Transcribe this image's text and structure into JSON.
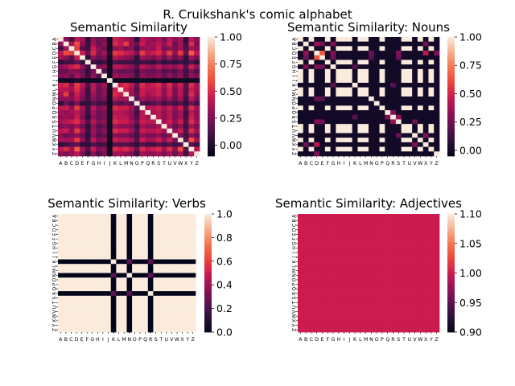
{
  "figure": {
    "suptitle": "R. Cruikshank's comic alphabet"
  },
  "chart_data": [
    {
      "type": "heatmap",
      "title": "Semantic Similarity",
      "x_labels": [
        "A",
        "B",
        "C",
        "D",
        "E",
        "F",
        "G",
        "H",
        "I",
        "J",
        "K",
        "L",
        "M",
        "N",
        "O",
        "P",
        "Q",
        "R",
        "S",
        "T",
        "U",
        "V",
        "W",
        "X",
        "Y",
        "Z"
      ],
      "y_labels": [
        "A",
        "B",
        "C",
        "D",
        "E",
        "F",
        "G",
        "H",
        "I",
        "J",
        "K",
        "L",
        "M",
        "N",
        "O",
        "P",
        "Q",
        "R",
        "S",
        "T",
        "U",
        "V",
        "W",
        "X",
        "Y",
        "Z"
      ],
      "vmin": -0.1,
      "vmax": 1.0,
      "colorbar_ticks": [
        "0.00",
        "0.25",
        "0.50",
        "0.75",
        "1.00"
      ],
      "colorbar_tick_values": [
        0.0,
        0.25,
        0.5,
        0.75,
        1.0
      ],
      "matrix": [
        [
          1.0,
          0.3,
          0.1,
          0.4,
          0.35,
          0.05,
          0.3,
          0.2,
          0.25,
          -0.05,
          0.45,
          0.4,
          0.35,
          0.3,
          0.05,
          0.4,
          0.35,
          0.3,
          0.35,
          0.25,
          0.4,
          0.3,
          0.35,
          0.05,
          0.4,
          0.3
        ],
        [
          0.3,
          1.0,
          0.35,
          0.6,
          0.3,
          0.1,
          0.35,
          0.2,
          0.3,
          -0.05,
          0.5,
          0.4,
          0.55,
          0.3,
          0.2,
          0.45,
          0.3,
          0.35,
          0.4,
          0.3,
          0.45,
          0.2,
          0.35,
          0.1,
          0.5,
          0.25
        ],
        [
          0.1,
          0.35,
          1.0,
          0.55,
          0.15,
          0.1,
          0.45,
          0.3,
          0.2,
          -0.05,
          0.3,
          0.35,
          0.25,
          0.3,
          0.1,
          0.3,
          0.35,
          0.3,
          0.45,
          0.25,
          0.3,
          0.25,
          0.35,
          0.15,
          0.35,
          0.3
        ],
        [
          0.4,
          0.6,
          0.55,
          1.0,
          0.45,
          0.2,
          0.5,
          0.25,
          0.35,
          0.0,
          0.55,
          0.5,
          0.45,
          0.4,
          0.25,
          0.55,
          0.4,
          0.45,
          0.5,
          0.35,
          0.55,
          0.3,
          0.55,
          0.2,
          0.65,
          0.4
        ],
        [
          0.35,
          0.3,
          0.15,
          0.45,
          1.0,
          0.05,
          0.3,
          0.2,
          0.25,
          -0.05,
          0.4,
          0.35,
          0.3,
          0.25,
          0.05,
          0.35,
          0.3,
          0.25,
          0.35,
          0.2,
          0.35,
          0.2,
          0.3,
          0.05,
          0.35,
          0.25
        ],
        [
          0.05,
          0.1,
          0.1,
          0.2,
          0.05,
          1.0,
          0.1,
          0.05,
          0.1,
          -0.05,
          0.15,
          0.1,
          0.1,
          0.1,
          0.05,
          0.1,
          0.1,
          0.05,
          0.15,
          0.05,
          0.1,
          0.05,
          0.1,
          0.05,
          0.15,
          0.05
        ],
        [
          0.3,
          0.35,
          0.45,
          0.5,
          0.3,
          0.1,
          1.0,
          0.25,
          0.3,
          -0.05,
          0.4,
          0.4,
          0.35,
          0.3,
          0.15,
          0.4,
          0.35,
          0.3,
          0.4,
          0.3,
          0.35,
          0.3,
          0.4,
          0.15,
          0.45,
          0.3
        ],
        [
          0.2,
          0.2,
          0.3,
          0.25,
          0.2,
          0.05,
          0.25,
          1.0,
          0.15,
          -0.05,
          0.25,
          0.2,
          0.2,
          0.2,
          0.1,
          0.25,
          0.2,
          0.2,
          0.25,
          0.15,
          0.2,
          0.15,
          0.25,
          0.1,
          0.25,
          0.15
        ],
        [
          0.25,
          0.3,
          0.2,
          0.35,
          0.25,
          0.1,
          0.3,
          0.15,
          1.0,
          -0.05,
          0.35,
          0.3,
          0.3,
          0.25,
          0.1,
          0.3,
          0.25,
          0.25,
          0.3,
          0.2,
          0.3,
          0.2,
          0.3,
          0.1,
          0.3,
          0.25
        ],
        [
          -0.05,
          -0.05,
          -0.05,
          0.0,
          -0.05,
          -0.05,
          -0.05,
          -0.05,
          -0.05,
          1.0,
          -0.05,
          -0.05,
          -0.05,
          -0.05,
          -0.05,
          -0.05,
          -0.05,
          -0.05,
          -0.05,
          -0.05,
          -0.05,
          -0.05,
          -0.05,
          -0.05,
          -0.05,
          -0.05
        ],
        [
          0.45,
          0.5,
          0.3,
          0.55,
          0.4,
          0.15,
          0.4,
          0.25,
          0.35,
          -0.05,
          1.0,
          0.45,
          0.5,
          0.4,
          0.2,
          0.5,
          0.4,
          0.45,
          0.5,
          0.35,
          0.5,
          0.3,
          0.45,
          0.15,
          0.5,
          0.35
        ],
        [
          0.4,
          0.4,
          0.35,
          0.5,
          0.35,
          0.1,
          0.4,
          0.2,
          0.3,
          -0.05,
          0.45,
          1.0,
          0.45,
          0.35,
          0.15,
          0.45,
          0.4,
          0.4,
          0.45,
          0.3,
          0.45,
          0.25,
          0.4,
          0.15,
          0.45,
          0.35
        ],
        [
          0.35,
          0.55,
          0.25,
          0.45,
          0.3,
          0.1,
          0.35,
          0.2,
          0.3,
          -0.05,
          0.5,
          0.45,
          1.0,
          0.35,
          0.2,
          0.45,
          0.35,
          0.4,
          0.45,
          0.3,
          0.45,
          0.25,
          0.4,
          0.15,
          0.5,
          0.3
        ],
        [
          0.3,
          0.3,
          0.3,
          0.4,
          0.25,
          0.1,
          0.3,
          0.2,
          0.25,
          -0.05,
          0.4,
          0.35,
          0.35,
          1.0,
          0.15,
          0.35,
          0.3,
          0.3,
          0.35,
          0.25,
          0.35,
          0.2,
          0.35,
          0.1,
          0.4,
          0.25
        ],
        [
          0.05,
          0.2,
          0.1,
          0.25,
          0.05,
          0.05,
          0.15,
          0.1,
          0.1,
          -0.05,
          0.2,
          0.15,
          0.2,
          0.15,
          1.0,
          0.15,
          0.1,
          0.15,
          0.2,
          0.1,
          0.15,
          0.1,
          0.15,
          0.05,
          0.2,
          0.1
        ],
        [
          0.4,
          0.45,
          0.3,
          0.55,
          0.35,
          0.1,
          0.4,
          0.25,
          0.3,
          -0.05,
          0.5,
          0.45,
          0.45,
          0.35,
          0.15,
          1.0,
          0.4,
          0.4,
          0.45,
          0.35,
          0.45,
          0.3,
          0.45,
          0.15,
          0.5,
          0.35
        ],
        [
          0.35,
          0.3,
          0.35,
          0.4,
          0.3,
          0.1,
          0.35,
          0.2,
          0.25,
          -0.05,
          0.4,
          0.4,
          0.35,
          0.3,
          0.1,
          0.4,
          1.0,
          0.35,
          0.4,
          0.3,
          0.4,
          0.25,
          0.35,
          0.1,
          0.4,
          0.3
        ],
        [
          0.3,
          0.35,
          0.3,
          0.45,
          0.25,
          0.05,
          0.3,
          0.2,
          0.25,
          -0.05,
          0.45,
          0.4,
          0.4,
          0.3,
          0.15,
          0.4,
          0.35,
          1.0,
          0.4,
          0.3,
          0.4,
          0.25,
          0.35,
          0.1,
          0.45,
          0.3
        ],
        [
          0.35,
          0.4,
          0.45,
          0.5,
          0.35,
          0.15,
          0.4,
          0.25,
          0.3,
          -0.05,
          0.5,
          0.45,
          0.45,
          0.35,
          0.2,
          0.45,
          0.4,
          0.4,
          1.0,
          0.35,
          0.45,
          0.3,
          0.45,
          0.15,
          0.5,
          0.35
        ],
        [
          0.25,
          0.3,
          0.25,
          0.35,
          0.2,
          0.05,
          0.3,
          0.15,
          0.2,
          -0.05,
          0.35,
          0.3,
          0.3,
          0.25,
          0.1,
          0.35,
          0.3,
          0.3,
          0.35,
          1.0,
          0.35,
          0.2,
          0.3,
          0.1,
          0.35,
          0.25
        ],
        [
          0.4,
          0.45,
          0.3,
          0.55,
          0.35,
          0.1,
          0.35,
          0.2,
          0.3,
          -0.05,
          0.5,
          0.45,
          0.45,
          0.35,
          0.15,
          0.45,
          0.4,
          0.4,
          0.45,
          0.35,
          1.0,
          0.3,
          0.45,
          0.15,
          0.5,
          0.35
        ],
        [
          0.3,
          0.2,
          0.25,
          0.3,
          0.2,
          0.05,
          0.3,
          0.15,
          0.2,
          -0.05,
          0.3,
          0.25,
          0.25,
          0.2,
          0.1,
          0.3,
          0.25,
          0.25,
          0.3,
          0.2,
          0.3,
          1.0,
          0.25,
          0.1,
          0.3,
          0.2
        ],
        [
          0.35,
          0.35,
          0.35,
          0.55,
          0.3,
          0.1,
          0.4,
          0.25,
          0.3,
          -0.05,
          0.45,
          0.4,
          0.4,
          0.35,
          0.15,
          0.45,
          0.35,
          0.35,
          0.45,
          0.3,
          0.45,
          0.25,
          1.0,
          0.15,
          0.6,
          0.35
        ],
        [
          0.05,
          0.1,
          0.15,
          0.2,
          0.05,
          0.05,
          0.15,
          0.1,
          0.1,
          -0.05,
          0.15,
          0.15,
          0.15,
          0.1,
          0.05,
          0.15,
          0.1,
          0.1,
          0.15,
          0.1,
          0.15,
          0.1,
          0.15,
          1.0,
          0.15,
          0.1
        ],
        [
          0.4,
          0.5,
          0.35,
          0.65,
          0.35,
          0.15,
          0.45,
          0.25,
          0.3,
          -0.05,
          0.5,
          0.45,
          0.5,
          0.4,
          0.2,
          0.5,
          0.4,
          0.45,
          0.5,
          0.35,
          0.5,
          0.3,
          0.6,
          0.15,
          1.0,
          0.4
        ],
        [
          0.3,
          0.25,
          0.3,
          0.4,
          0.25,
          0.05,
          0.3,
          0.15,
          0.25,
          -0.05,
          0.35,
          0.35,
          0.3,
          0.25,
          0.1,
          0.35,
          0.3,
          0.3,
          0.35,
          0.25,
          0.35,
          0.2,
          0.35,
          0.1,
          0.4,
          1.0
        ]
      ]
    },
    {
      "type": "heatmap",
      "title": "Semantic Similarity: Nouns",
      "x_labels": [
        "A",
        "B",
        "C",
        "D",
        "E",
        "F",
        "G",
        "H",
        "I",
        "J",
        "K",
        "L",
        "M",
        "N",
        "O",
        "P",
        "Q",
        "R",
        "S",
        "T",
        "U",
        "V",
        "W",
        "X",
        "Y",
        "Z"
      ],
      "y_labels": [
        "A",
        "B",
        "C",
        "D",
        "E",
        "F",
        "G",
        "H",
        "I",
        "J",
        "K",
        "L",
        "M",
        "N",
        "O",
        "P",
        "Q",
        "R",
        "S",
        "T",
        "U",
        "V",
        "W",
        "X",
        "Y",
        "Z"
      ],
      "vmin": -0.05,
      "vmax": 1.0,
      "colorbar_ticks": [
        "0.00",
        "0.25",
        "0.50",
        "0.75",
        "1.00"
      ],
      "colorbar_tick_values": [
        0.0,
        0.25,
        0.5,
        0.75,
        1.0
      ],
      "noun_letters": [
        "A",
        "C",
        "F",
        "H",
        "I",
        "J",
        "L",
        "M",
        "P",
        "T",
        "U",
        "W",
        "Y"
      ],
      "non_noun_letters": [
        "B",
        "D",
        "E",
        "G",
        "K",
        "N",
        "O",
        "Q",
        "R",
        "S",
        "V",
        "X",
        "Z"
      ],
      "noun_noun_value": 1.0,
      "other_value": 0.0,
      "highlights": [
        {
          "row": "B",
          "col": "D",
          "value": 0.35
        },
        {
          "row": "B",
          "col": "E",
          "value": 0.25
        },
        {
          "row": "B",
          "col": "G",
          "value": 0.3
        },
        {
          "row": "D",
          "col": "E",
          "value": 0.65
        },
        {
          "row": "D",
          "col": "G",
          "value": 0.3
        },
        {
          "row": "D",
          "col": "N",
          "value": 0.25
        },
        {
          "row": "D",
          "col": "S",
          "value": 0.3
        },
        {
          "row": "E",
          "col": "G",
          "value": 0.25
        },
        {
          "row": "E",
          "col": "N",
          "value": 0.2
        },
        {
          "row": "E",
          "col": "S",
          "value": 0.25
        },
        {
          "row": "G",
          "col": "K",
          "value": 0.2
        },
        {
          "row": "K",
          "col": "R",
          "value": 0.2
        },
        {
          "row": "Q",
          "col": "R",
          "value": 0.3
        },
        {
          "row": "R",
          "col": "S",
          "value": 0.35
        },
        {
          "row": "S",
          "col": "V",
          "value": 0.25
        },
        {
          "row": "V",
          "col": "X",
          "value": 0.3
        },
        {
          "row": "D",
          "col": "X",
          "value": 0.45
        },
        {
          "row": "D",
          "col": "Z",
          "value": 0.3
        },
        {
          "row": "B",
          "col": "X",
          "value": 0.25
        }
      ]
    },
    {
      "type": "heatmap",
      "title": "Semantic Similarity: Verbs",
      "x_labels": [
        "A",
        "B",
        "C",
        "D",
        "E",
        "F",
        "G",
        "H",
        "I",
        "J",
        "K",
        "L",
        "M",
        "N",
        "O",
        "P",
        "Q",
        "R",
        "S",
        "T",
        "U",
        "V",
        "W",
        "X",
        "Y",
        "Z"
      ],
      "y_labels": [
        "A",
        "B",
        "C",
        "D",
        "E",
        "F",
        "G",
        "H",
        "I",
        "J",
        "K",
        "L",
        "M",
        "N",
        "O",
        "P",
        "Q",
        "R",
        "S",
        "T",
        "U",
        "V",
        "W",
        "X",
        "Y",
        "Z"
      ],
      "vmin": 0.0,
      "vmax": 1.0,
      "colorbar_ticks": [
        "0.0",
        "0.2",
        "0.4",
        "0.6",
        "0.8",
        "1.0"
      ],
      "colorbar_tick_values": [
        0.0,
        0.2,
        0.4,
        0.6,
        0.8,
        1.0
      ],
      "verb_letters": [
        "K",
        "N",
        "R"
      ],
      "non_verb_value": 1.0,
      "verb_nonverb_value": 0.0,
      "verb_verb_value": 0.25,
      "verb_self_value": 1.0
    },
    {
      "type": "heatmap",
      "title": "Semantic Similarity: Adjectives",
      "x_labels": [
        "A",
        "B",
        "C",
        "D",
        "E",
        "F",
        "G",
        "H",
        "I",
        "J",
        "K",
        "L",
        "M",
        "N",
        "O",
        "P",
        "Q",
        "R",
        "S",
        "T",
        "U",
        "V",
        "W",
        "X",
        "Y",
        "Z"
      ],
      "y_labels": [
        "A",
        "B",
        "C",
        "D",
        "E",
        "F",
        "G",
        "H",
        "I",
        "J",
        "K",
        "L",
        "M",
        "N",
        "O",
        "P",
        "Q",
        "R",
        "S",
        "T",
        "U",
        "V",
        "W",
        "X",
        "Y",
        "Z"
      ],
      "vmin": 0.9,
      "vmax": 1.1,
      "colorbar_ticks": [
        "0.90",
        "0.95",
        "1.00",
        "1.05",
        "1.10"
      ],
      "colorbar_tick_values": [
        0.9,
        0.95,
        1.0,
        1.05,
        1.1
      ],
      "uniform_value": 1.0
    }
  ]
}
